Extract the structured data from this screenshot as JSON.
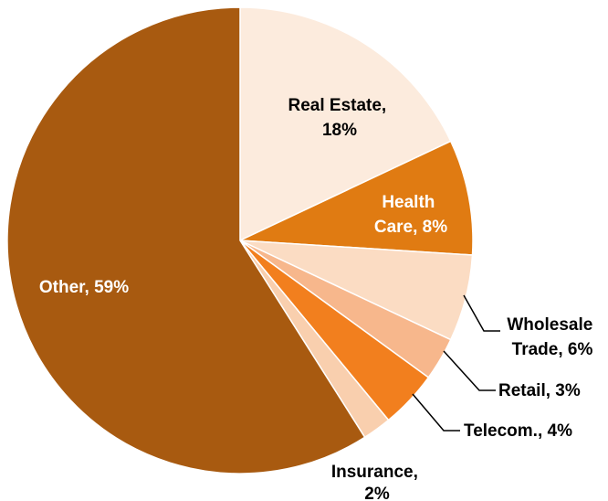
{
  "chart_data": {
    "type": "pie",
    "title": "",
    "slices": [
      {
        "label": "Real Estate",
        "value": 18,
        "display_label": "Real Estate, 18%",
        "color": "#FCEBDD"
      },
      {
        "label": "Health Care",
        "value": 8,
        "display_label": "Health Care, 8%",
        "color": "#E07B12"
      },
      {
        "label": "Wholesale Trade",
        "value": 6,
        "display_label": "Wholesale Trade, 6%",
        "color": "#FBDCC3"
      },
      {
        "label": "Retail",
        "value": 3,
        "display_label": "Retail, 3%",
        "color": "#F7B78C"
      },
      {
        "label": "Telecom.",
        "value": 4,
        "display_label": "Telecom., 4%",
        "color": "#F27F1E"
      },
      {
        "label": "Insurance",
        "value": 2,
        "display_label": "Insurance, 2%",
        "color": "#F9CFAE"
      },
      {
        "label": "Other",
        "value": 59,
        "display_label": "Other, 59%",
        "color": "#A85A10"
      }
    ]
  },
  "labels": {
    "real_estate_1": "Real Estate,",
    "real_estate_2": "18%",
    "health_care_1": "Health",
    "health_care_2": "Care, 8%",
    "wholesale_1": "Wholesale",
    "wholesale_2": "Trade, 6%",
    "retail": "Retail, 3%",
    "telecom": "Telecom., 4%",
    "insurance_1": "Insurance,",
    "insurance_2": "2%",
    "other": "Other, 59%"
  },
  "label_color_light": "#ffffff",
  "label_color_dark": "#000000"
}
